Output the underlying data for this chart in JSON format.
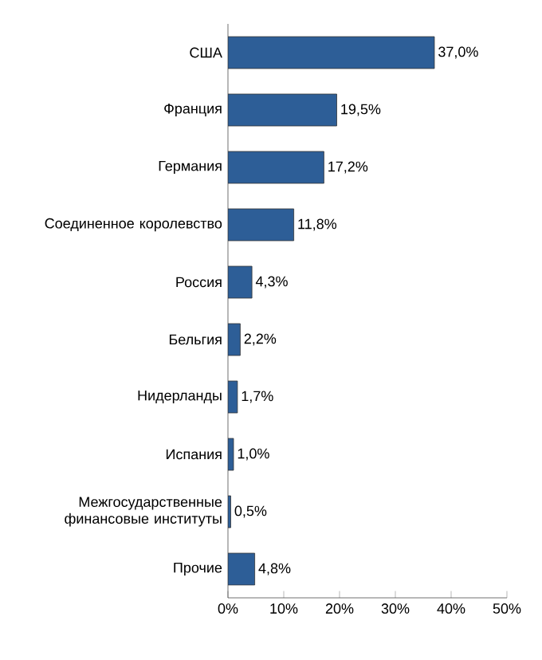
{
  "chart_data": {
    "type": "bar",
    "orientation": "horizontal",
    "categories": [
      "США",
      "Франция",
      "Германия",
      "Соединенное королевство",
      "Россия",
      "Бельгия",
      "Нидерланды",
      "Испания",
      "Межгосударственные финансовые институты",
      "Прочие"
    ],
    "values": [
      37.0,
      19.5,
      17.2,
      11.8,
      4.3,
      2.2,
      1.7,
      1.0,
      0.5,
      4.8
    ],
    "value_labels": [
      "37,0%",
      "19,5%",
      "17,2%",
      "11,8%",
      "4,3%",
      "2,2%",
      "1,7%",
      "1,0%",
      "0,5%",
      "4,8%"
    ],
    "color": "#2d5e97",
    "xlim": [
      0,
      50
    ],
    "xticks": [
      {
        "value": 0,
        "label": "0%"
      },
      {
        "value": 10,
        "label": "10%"
      },
      {
        "value": 20,
        "label": "20%"
      },
      {
        "value": 30,
        "label": "30%"
      },
      {
        "value": 40,
        "label": "40%"
      },
      {
        "value": 50,
        "label": "50%"
      }
    ]
  }
}
